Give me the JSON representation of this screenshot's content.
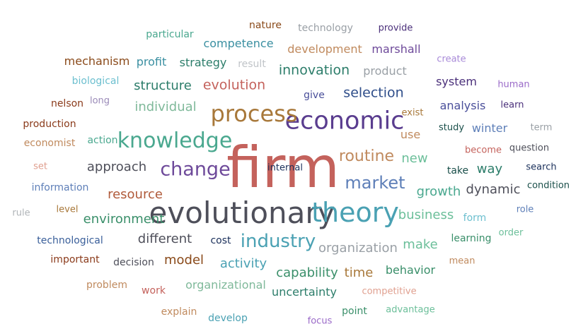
{
  "words": [
    {
      "text": "firm",
      "size": 100,
      "color": "#c4625c"
    },
    {
      "text": "evolutionary",
      "size": 52,
      "color": "#4e4f5a"
    },
    {
      "text": "theory",
      "size": 48,
      "color": "#4aa1b3"
    },
    {
      "text": "economic",
      "size": 44,
      "color": "#5a3d8f"
    },
    {
      "text": "process",
      "size": 40,
      "color": "#a8783a"
    },
    {
      "text": "knowledge",
      "size": 38,
      "color": "#4aa88f"
    },
    {
      "text": "change",
      "size": 34,
      "color": "#6e4a9a"
    },
    {
      "text": "industry",
      "size": 32,
      "color": "#4aa1b3"
    },
    {
      "text": "market",
      "size": 30,
      "color": "#5e7fb8"
    },
    {
      "text": "routine",
      "size": 28,
      "color": "#c08a5e"
    },
    {
      "text": "selection",
      "size": 24,
      "color": "#2f4e8a"
    },
    {
      "text": "innovation",
      "size": 24,
      "color": "#2c7d6a"
    },
    {
      "text": "evolution",
      "size": 24,
      "color": "#c4625c"
    },
    {
      "text": "approach",
      "size": 22,
      "color": "#4e4f5a"
    },
    {
      "text": "different",
      "size": 22,
      "color": "#4e4f5a"
    },
    {
      "text": "resource",
      "size": 22,
      "color": "#b05a3a"
    },
    {
      "text": "individual",
      "size": 22,
      "color": "#7fb99a"
    },
    {
      "text": "structure",
      "size": 22,
      "color": "#2c7d6a"
    },
    {
      "text": "environment",
      "size": 22,
      "color": "#3a8f6a"
    },
    {
      "text": "capability",
      "size": 22,
      "color": "#3a8f6a"
    },
    {
      "text": "time",
      "size": 22,
      "color": "#a8783a"
    },
    {
      "text": "organization",
      "size": 22,
      "color": "#9aa0a6"
    },
    {
      "text": "make",
      "size": 22,
      "color": "#6cbf9a"
    },
    {
      "text": "growth",
      "size": 22,
      "color": "#4aa88f"
    },
    {
      "text": "business",
      "size": 22,
      "color": "#6cbf9a"
    },
    {
      "text": "activity",
      "size": 22,
      "color": "#4aa1b3"
    },
    {
      "text": "model",
      "size": 22,
      "color": "#8a4a1a"
    },
    {
      "text": "new",
      "size": 22,
      "color": "#6cbf9a"
    },
    {
      "text": "use",
      "size": 20,
      "color": "#c08a5e"
    },
    {
      "text": "way",
      "size": 22,
      "color": "#2c7d6a"
    },
    {
      "text": "dynamic",
      "size": 22,
      "color": "#4e4f5a"
    },
    {
      "text": "behavior",
      "size": 20,
      "color": "#3a8f6a"
    },
    {
      "text": "uncertainty",
      "size": 20,
      "color": "#2c7d6a"
    },
    {
      "text": "organizational",
      "size": 20,
      "color": "#7fb99a"
    },
    {
      "text": "development",
      "size": 20,
      "color": "#c08a5e"
    },
    {
      "text": "marshall",
      "size": 20,
      "color": "#6e4a9a"
    },
    {
      "text": "competence",
      "size": 20,
      "color": "#3a8fa1"
    },
    {
      "text": "strategy",
      "size": 20,
      "color": "#2c7d6a"
    },
    {
      "text": "profit",
      "size": 20,
      "color": "#3a8fa1"
    },
    {
      "text": "mechanism",
      "size": 20,
      "color": "#8a4a1a"
    },
    {
      "text": "product",
      "size": 20,
      "color": "#9aa0a6"
    },
    {
      "text": "system",
      "size": 20,
      "color": "#4a2f7a"
    },
    {
      "text": "analysis",
      "size": 20,
      "color": "#4a4f9a"
    },
    {
      "text": "winter",
      "size": 20,
      "color": "#5e7fb8"
    },
    {
      "text": "give",
      "size": 18,
      "color": "#4a4f9a"
    },
    {
      "text": "decision",
      "size": 18,
      "color": "#4e4f5a"
    },
    {
      "text": "cost",
      "size": 18,
      "color": "#1a2f5a"
    },
    {
      "text": "take",
      "size": 18,
      "color": "#1a4f4a"
    },
    {
      "text": "learning",
      "size": 18,
      "color": "#3a8f6a"
    },
    {
      "text": "form",
      "size": 18,
      "color": "#6cbfcf"
    },
    {
      "text": "technological",
      "size": 18,
      "color": "#3a5f9a"
    },
    {
      "text": "important",
      "size": 18,
      "color": "#8a3a1a"
    },
    {
      "text": "production",
      "size": 18,
      "color": "#8a3a1a"
    },
    {
      "text": "economist",
      "size": 18,
      "color": "#c08a5e"
    },
    {
      "text": "information",
      "size": 18,
      "color": "#5e7fb8"
    },
    {
      "text": "action",
      "size": 18,
      "color": "#4aa88f"
    },
    {
      "text": "biological",
      "size": 18,
      "color": "#6cbfcf"
    },
    {
      "text": "nelson",
      "size": 18,
      "color": "#8a3a1a"
    },
    {
      "text": "particular",
      "size": 18,
      "color": "#4aa88f"
    },
    {
      "text": "nature",
      "size": 18,
      "color": "#8a4a1a"
    },
    {
      "text": "technology",
      "size": 18,
      "color": "#9aa0a6"
    },
    {
      "text": "result",
      "size": 18,
      "color": "#c0c4c8"
    },
    {
      "text": "work",
      "size": 18,
      "color": "#c4625c"
    },
    {
      "text": "problem",
      "size": 18,
      "color": "#c08a5e"
    },
    {
      "text": "explain",
      "size": 18,
      "color": "#c08a5e"
    },
    {
      "text": "develop",
      "size": 18,
      "color": "#4aa1b3"
    },
    {
      "text": "point",
      "size": 18,
      "color": "#3a8f6a"
    },
    {
      "text": "advantage",
      "size": 16,
      "color": "#6cbf9a"
    },
    {
      "text": "competitive",
      "size": 16,
      "color": "#e0a090"
    },
    {
      "text": "focus",
      "size": 16,
      "color": "#9a6ac8"
    },
    {
      "text": "mean",
      "size": 16,
      "color": "#c08a5e"
    },
    {
      "text": "order",
      "size": 16,
      "color": "#6cbf9a"
    },
    {
      "text": "role",
      "size": 16,
      "color": "#5e7fb8"
    },
    {
      "text": "condition",
      "size": 16,
      "color": "#1a4f4a"
    },
    {
      "text": "search",
      "size": 16,
      "color": "#1a2f5a"
    },
    {
      "text": "question",
      "size": 16,
      "color": "#4e4f5a"
    },
    {
      "text": "become",
      "size": 16,
      "color": "#c4625c"
    },
    {
      "text": "term",
      "size": 16,
      "color": "#9aa0a6"
    },
    {
      "text": "study",
      "size": 16,
      "color": "#1a4f4a"
    },
    {
      "text": "learn",
      "size": 16,
      "color": "#4a2f7a"
    },
    {
      "text": "human",
      "size": 16,
      "color": "#9a6ac8"
    },
    {
      "text": "create",
      "size": 16,
      "color": "#a88ad8"
    },
    {
      "text": "provide",
      "size": 16,
      "color": "#4a2f7a"
    },
    {
      "text": "exist",
      "size": 16,
      "color": "#a8783a"
    },
    {
      "text": "long",
      "size": 16,
      "color": "#9a8ab8"
    },
    {
      "text": "set",
      "size": 16,
      "color": "#e0a090"
    },
    {
      "text": "level",
      "size": 16,
      "color": "#a8783a"
    },
    {
      "text": "rule",
      "size": 16,
      "color": "#b0b4b8"
    },
    {
      "text": "internal",
      "size": 16,
      "color": "#1a2f5a"
    }
  ]
}
